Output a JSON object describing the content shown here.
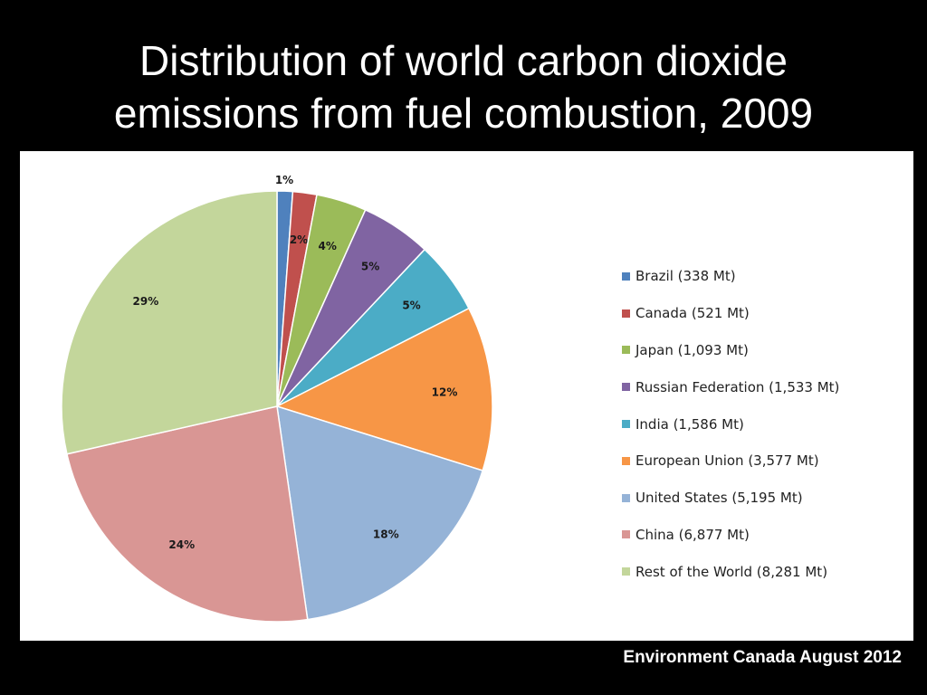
{
  "slide": {
    "title_line1": "Distribution of world carbon dioxide",
    "title_line2": "emissions from fuel combustion, 2009",
    "source": "Environment Canada August 2012"
  },
  "chart_data": {
    "type": "pie",
    "title": "Distribution of world carbon dioxide emissions from fuel combustion, 2009",
    "legend_position": "right",
    "slices": [
      {
        "name": "Brazil (338 Mt)",
        "value": 338,
        "label": "1%",
        "color": "#4f81bd"
      },
      {
        "name": "Canada (521 Mt)",
        "value": 521,
        "label": "2%",
        "color": "#c0504d"
      },
      {
        "name": "Japan (1,093 Mt)",
        "value": 1093,
        "label": "4%",
        "color": "#9bbb59"
      },
      {
        "name": "Russian Federation (1,533 Mt)",
        "value": 1533,
        "label": "5%",
        "color": "#8064a2"
      },
      {
        "name": "India (1,586 Mt)",
        "value": 1586,
        "label": "5%",
        "color": "#4bacc6"
      },
      {
        "name": "European Union (3,577 Mt)",
        "value": 3577,
        "label": "12%",
        "color": "#f79646"
      },
      {
        "name": "United States (5,195 Mt)",
        "value": 5195,
        "label": "18%",
        "color": "#95b3d7"
      },
      {
        "name": "China (6,877 Mt)",
        "value": 6877,
        "label": "24%",
        "color": "#d99694"
      },
      {
        "name": "Rest of the World (8,281 Mt)",
        "value": 8281,
        "label": "29%",
        "color": "#c3d69b"
      }
    ]
  }
}
